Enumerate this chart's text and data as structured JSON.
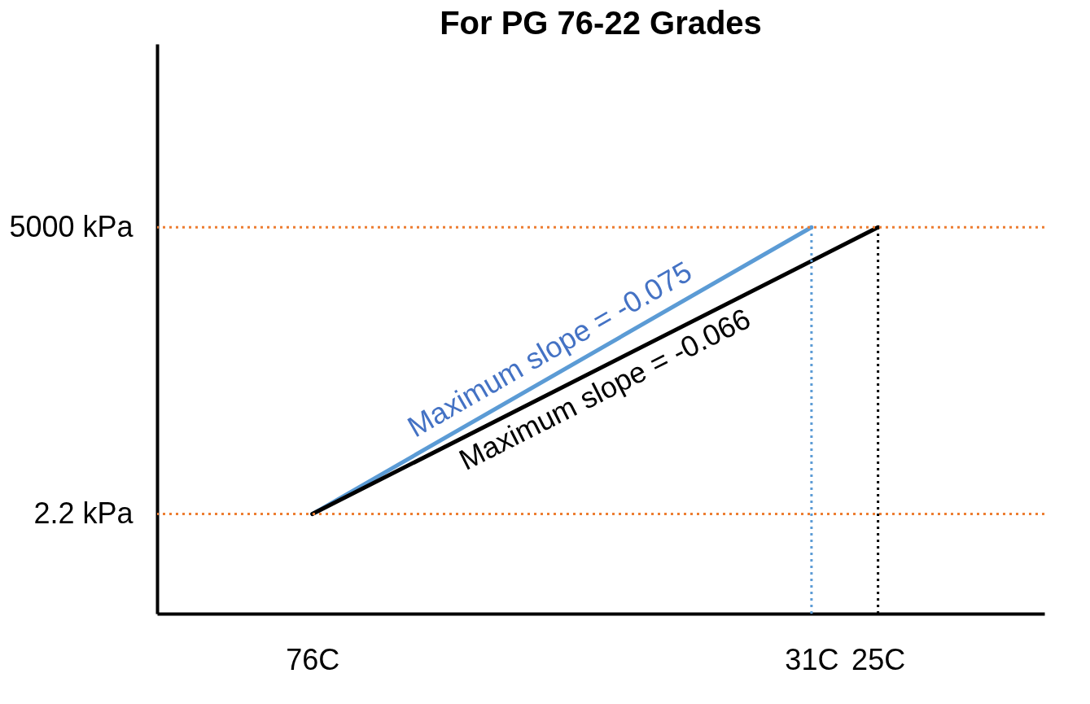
{
  "chart_data": {
    "type": "line",
    "title": "For PG 76-22 Grades",
    "xlim": [
      90,
      10
    ],
    "xticks": [
      {
        "value": 76,
        "label": "76C"
      },
      {
        "value": 31,
        "label": "31C"
      },
      {
        "value": 25,
        "label": "25C"
      }
    ],
    "ylim": [
      0.15,
      700000
    ],
    "yticks": [
      {
        "value": 2.2,
        "label": "2.2 kPa"
      },
      {
        "value": 5000,
        "label": "5000 kPa"
      }
    ],
    "log": true,
    "series": [
      {
        "color": "#5b9bd5",
        "x": [
          76,
          31
        ],
        "values": [
          2.2,
          5000
        ]
      },
      {
        "color": "#000000",
        "x": [
          76,
          25
        ],
        "values": [
          2.2,
          5000
        ]
      }
    ],
    "ref_lines": [
      {
        "axis": "y",
        "value": 2.2,
        "color": "#ed7d31",
        "line_style": "dotted"
      },
      {
        "axis": "y",
        "value": 5000,
        "color": "#ed7d31",
        "line_style": "dotted"
      },
      {
        "axis": "x",
        "value": 31,
        "color": "#5b9bd5",
        "line_style": "dotted"
      },
      {
        "axis": "x",
        "value": 25,
        "color": "#000000",
        "line_style": "dotted"
      }
    ],
    "annotations": [
      {
        "text": "Maximum slope = -0.075",
        "x": 53.5,
        "y": 105
      },
      {
        "text": "Maximum slope = -0.066",
        "x": 50.5,
        "y": 105
      }
    ]
  }
}
